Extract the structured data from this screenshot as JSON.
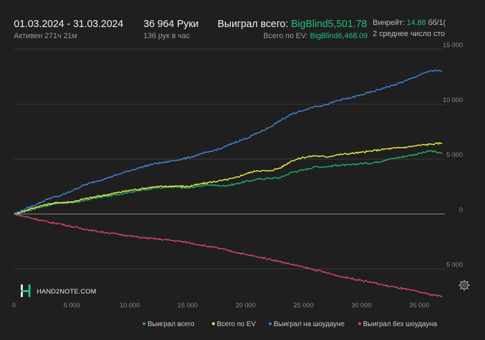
{
  "header": {
    "date_range": "01.03.2024 - 31.03.2024",
    "active_time": "Активен 271ч 21м",
    "hands_count": "36 964 Руки",
    "hands_per_hour": "136 рук в час",
    "won_total_label": "Выиграл всего:",
    "won_total_value": "BigBlind5,501.78",
    "ev_total_label": "Всего по EV:",
    "ev_total_value": "BigBlind6,468.09",
    "winrate_label": "Винрейт:",
    "winrate_value": "14.88",
    "winrate_unit": "бб/1(",
    "avg_stack_text": "2 среднее число сто"
  },
  "logo": {
    "text": "HAND2NOTE.COM"
  },
  "colors": {
    "won": "#1fb26b",
    "ev": "#f2ef4a",
    "showdown": "#3d8ad6",
    "nonshowdown": "#d8466f",
    "grid": "#3a3a3a",
    "zero": "#8c8c8c"
  },
  "chart_data": {
    "type": "line",
    "xlabel": "",
    "ylabel": "",
    "xlim": [
      0,
      37200
    ],
    "ylim": [
      -7500,
      15000
    ],
    "x_ticks": [
      0,
      5000,
      10000,
      15000,
      20000,
      25000,
      30000,
      35000
    ],
    "x_tick_labels": [
      "0",
      "5 000",
      "10 000",
      "15 000",
      "20 000",
      "25 000",
      "30 000",
      "35 000"
    ],
    "y_ticks": [
      15000,
      10000,
      5000,
      0,
      -5000
    ],
    "y_tick_labels": [
      "15 000",
      "10 000",
      "5 000",
      "0",
      "5 000"
    ],
    "legend_position": "bottom-right",
    "series": [
      {
        "name": "Выиграл всего",
        "key": "won",
        "x": [
          0,
          1000,
          2000,
          3000,
          4000,
          5000,
          6000,
          7000,
          8000,
          9000,
          10000,
          11000,
          12000,
          13000,
          14000,
          15000,
          16000,
          17000,
          18000,
          19000,
          20000,
          21000,
          22000,
          23000,
          24000,
          25000,
          26000,
          27000,
          28000,
          29000,
          30000,
          31000,
          32000,
          33000,
          34000,
          35000,
          36000,
          36964
        ],
        "values": [
          0,
          250,
          550,
          800,
          1000,
          1000,
          1200,
          1450,
          1600,
          1800,
          2000,
          2150,
          2350,
          2400,
          2450,
          2350,
          2550,
          2650,
          2550,
          2700,
          2950,
          3150,
          3250,
          3300,
          3800,
          4000,
          4300,
          4300,
          4450,
          4450,
          4600,
          4650,
          4900,
          5100,
          5300,
          5500,
          5750,
          5500
        ]
      },
      {
        "name": "Всего по EV",
        "key": "ev",
        "x": [
          0,
          1000,
          2000,
          3000,
          4000,
          5000,
          6000,
          7000,
          8000,
          9000,
          10000,
          11000,
          12000,
          13000,
          14000,
          15000,
          16000,
          17000,
          18000,
          19000,
          20000,
          21000,
          22000,
          23000,
          24000,
          25000,
          26000,
          27000,
          28000,
          29000,
          30000,
          31000,
          32000,
          33000,
          34000,
          35000,
          36000,
          36964
        ],
        "values": [
          0,
          300,
          650,
          900,
          1050,
          1100,
          1350,
          1550,
          1750,
          1950,
          2150,
          2300,
          2450,
          2500,
          2550,
          2500,
          2700,
          2900,
          3050,
          3250,
          3650,
          3950,
          3900,
          4200,
          4850,
          5150,
          5300,
          5200,
          5400,
          5500,
          5600,
          5750,
          5900,
          6000,
          6100,
          6250,
          6350,
          6450
        ]
      },
      {
        "name": "Выиграл на шоудауне",
        "key": "showdown",
        "x": [
          0,
          1000,
          2000,
          3000,
          4000,
          5000,
          6000,
          7000,
          8000,
          9000,
          10000,
          11000,
          12000,
          13000,
          14000,
          15000,
          16000,
          17000,
          18000,
          19000,
          20000,
          21000,
          22000,
          23000,
          24000,
          25000,
          26000,
          27000,
          28000,
          29000,
          30000,
          31000,
          32000,
          33000,
          34000,
          35000,
          36000,
          36964
        ],
        "values": [
          0,
          450,
          900,
          1400,
          1650,
          2100,
          2600,
          2950,
          3250,
          3600,
          3950,
          4250,
          4550,
          4700,
          4900,
          5100,
          5400,
          5700,
          6000,
          6500,
          6850,
          7350,
          7850,
          8500,
          9100,
          9450,
          9800,
          9950,
          10350,
          10550,
          10850,
          11150,
          11500,
          11800,
          12200,
          12650,
          13050,
          13000
        ]
      },
      {
        "name": "Выиграл без шоудауна",
        "key": "nonshowdown",
        "x": [
          0,
          1000,
          2000,
          3000,
          4000,
          5000,
          6000,
          7000,
          8000,
          9000,
          10000,
          11000,
          12000,
          13000,
          14000,
          15000,
          16000,
          17000,
          18000,
          19000,
          20000,
          21000,
          22000,
          23000,
          24000,
          25000,
          26000,
          27000,
          28000,
          29000,
          30000,
          31000,
          32000,
          33000,
          34000,
          35000,
          36000,
          36964
        ],
        "values": [
          0,
          -250,
          -500,
          -750,
          -900,
          -1150,
          -1350,
          -1550,
          -1700,
          -1850,
          -2000,
          -2150,
          -2250,
          -2350,
          -2450,
          -2600,
          -2800,
          -3000,
          -3200,
          -3450,
          -3700,
          -3900,
          -4100,
          -4350,
          -4600,
          -4850,
          -5100,
          -5350,
          -5650,
          -5850,
          -6050,
          -6250,
          -6500,
          -6700,
          -6900,
          -7100,
          -7350,
          -7500
        ]
      }
    ]
  }
}
